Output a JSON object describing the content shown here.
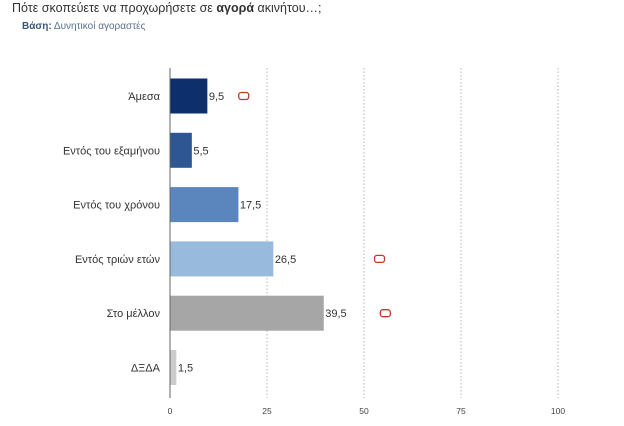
{
  "header": {
    "title_pre": "Πότε σκοπεύετε να προχωρήσετε σε ",
    "title_bold": "αγορά",
    "title_post": " ακινήτου…;",
    "base_label": "Βάση:",
    "base_value": " Δυνητικοί αγοραστές"
  },
  "chart_data": {
    "type": "bar",
    "orientation": "horizontal",
    "categories": [
      "Άμεσα",
      "Εντός του εξαμήνου",
      "Εντός του χρόνου",
      "Εντός τριών ετών",
      "Στο μέλλον",
      "ΔΞΔΑ"
    ],
    "values": [
      9.5,
      5.5,
      17.5,
      26.5,
      39.5,
      1.5
    ],
    "value_labels": [
      "9,5",
      "5,5",
      "17,5",
      "26,5",
      "39,5",
      "1,5"
    ],
    "colors": [
      "#0d2f6b",
      "#2d5693",
      "#5b85bd",
      "#97badd",
      "#a6a6a6",
      "#cccccc"
    ],
    "xlim": [
      0,
      100
    ],
    "xticks": [
      0,
      25,
      50,
      75,
      100
    ],
    "grid": "vertical dotted",
    "markers": [
      {
        "category_index": 0,
        "value": 19
      },
      {
        "category_index": 3,
        "value": 54
      },
      {
        "category_index": 4,
        "value": 55.5
      }
    ],
    "marker_color": "#c0392b"
  }
}
